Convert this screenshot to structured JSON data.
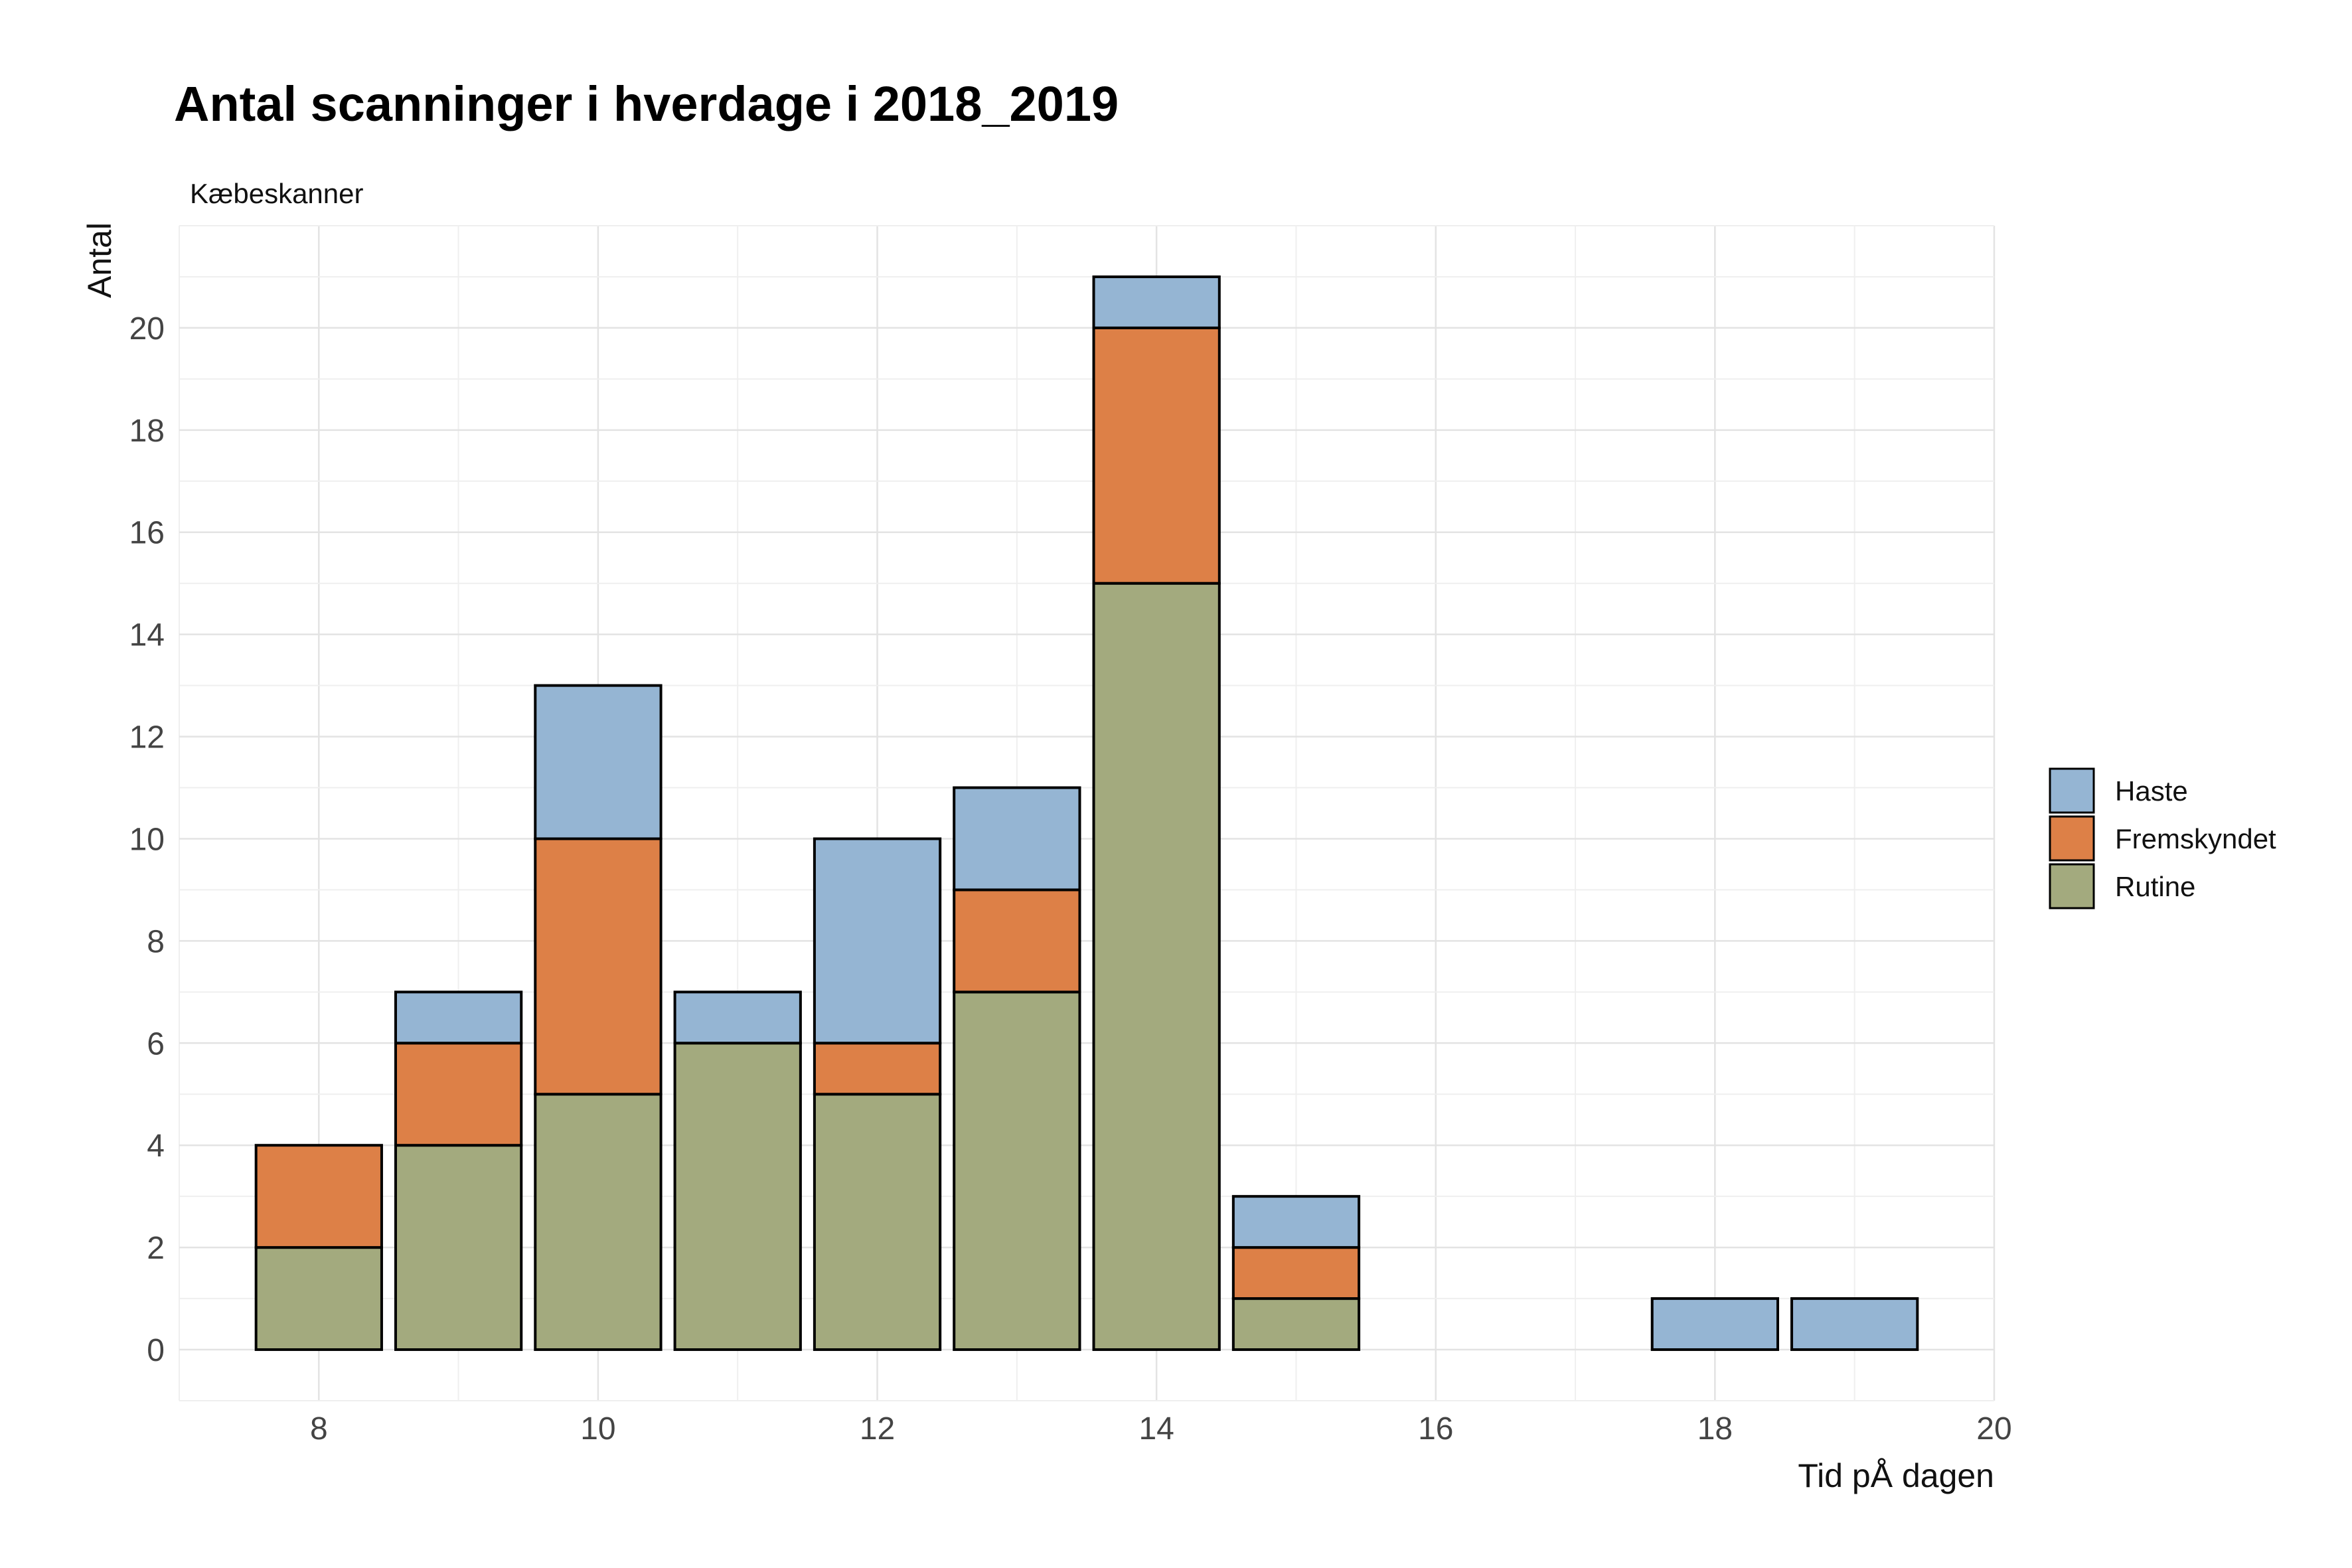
{
  "chart_data": {
    "type": "bar",
    "stacked": true,
    "title": "Antal scanninger i hverdage i 2018_2019",
    "subtitle": "Kæbeskanner",
    "xlabel": "Tid pÅ dagen",
    "ylabel": "Antal",
    "x": [
      8,
      9,
      10,
      11,
      12,
      13,
      14,
      15,
      18,
      19
    ],
    "xlim": [
      7,
      20
    ],
    "ylim": [
      -1,
      22
    ],
    "xticks": [
      8,
      10,
      12,
      14,
      16,
      18,
      20
    ],
    "yticks": [
      0,
      2,
      4,
      6,
      8,
      10,
      12,
      14,
      16,
      18,
      20
    ],
    "grid": true,
    "legend_position": "right",
    "series": [
      {
        "name": "Rutine",
        "color": "#a3aa7e",
        "values": [
          2,
          4,
          5,
          6,
          5,
          7,
          15,
          1,
          0,
          0
        ]
      },
      {
        "name": "Fremskyndet",
        "color": "#dd8047",
        "values": [
          2,
          2,
          5,
          0,
          1,
          2,
          5,
          1,
          0,
          0
        ]
      },
      {
        "name": "Haste",
        "color": "#95b5d3",
        "values": [
          0,
          1,
          3,
          1,
          4,
          2,
          1,
          1,
          1,
          1
        ]
      }
    ],
    "legend_order": [
      "Haste",
      "Fremskyndet",
      "Rutine"
    ]
  }
}
